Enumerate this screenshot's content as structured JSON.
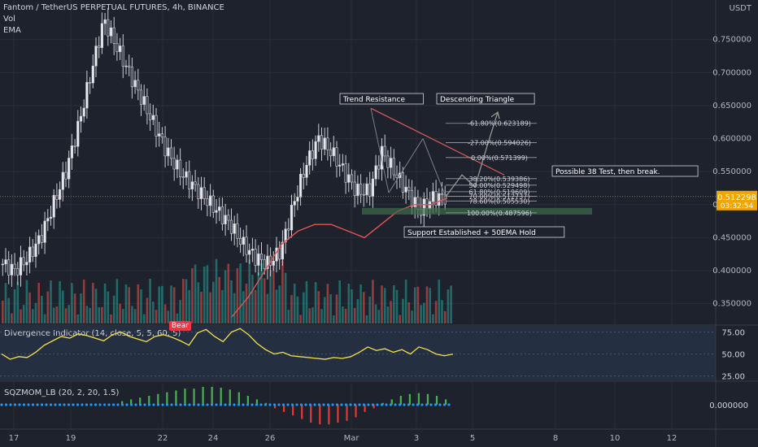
{
  "header": {
    "title": "Fantom / TetherUS PERPETUAL FUTURES, 4h, BINANCE",
    "vol_label": "Vol",
    "ema_label": "EMA"
  },
  "price_scale": {
    "currency": "USDT",
    "current_price": "0.512298",
    "countdown": "03:32:54"
  },
  "colors": {
    "background": "#1e222d",
    "up": "#26a69a",
    "down": "#ef5350",
    "ema": "#e05555",
    "divergence_line": "#f5e14b",
    "fib_line": "#9aa0a6",
    "resistance": "#e05a5a",
    "support_zone": "#3d6b4a",
    "sqz_pos": "#4caf50",
    "sqz_neg": "#e53935",
    "sqz_dot": "#2196f3"
  },
  "annotations": {
    "trend_resistance": "Trend Resistance",
    "descending_triangle": "Descending Triangle",
    "possible_test": "Possible 38 Test, then break.",
    "support": "Support Established + 50EMA Hold"
  },
  "divergence_panel": {
    "label": "Divergence Indicator (14, close, 5, 5, 60, 5)",
    "bear_badge": "Bear"
  },
  "sqz_panel": {
    "label": "SQZMOM_LB (20, 2, 20, 1.5)",
    "zero_label": "0.000000"
  },
  "chart_data": [
    {
      "type": "candlestick",
      "title": "Fantom / TetherUS PERPETUAL FUTURES, 4h, BINANCE",
      "ylabel": "USDT",
      "ylim": [
        0.32,
        0.81
      ],
      "yticks": [
        0.35,
        0.4,
        0.45,
        0.5,
        0.55,
        0.6,
        0.65,
        0.7,
        0.75
      ],
      "ytick_labels": [
        "0.350000",
        "0.400000",
        "0.450000",
        "0.500000",
        "0.550000",
        "0.600000",
        "0.650000",
        "0.700000",
        "0.750000"
      ],
      "x_ticks": [
        "17",
        "19",
        "22",
        "24",
        "26",
        "Mar",
        "3",
        "5",
        "8",
        "10",
        "12"
      ],
      "close_path": [
        0.41,
        0.4,
        0.42,
        0.45,
        0.5,
        0.55,
        0.62,
        0.7,
        0.78,
        0.74,
        0.7,
        0.66,
        0.62,
        0.58,
        0.55,
        0.53,
        0.51,
        0.49,
        0.47,
        0.44,
        0.42,
        0.41,
        0.43,
        0.5,
        0.56,
        0.6,
        0.58,
        0.55,
        0.52,
        0.52,
        0.58,
        0.55,
        0.52,
        0.49,
        0.51,
        0.512
      ],
      "ema_path": [
        0.33,
        0.36,
        0.4,
        0.44,
        0.46,
        0.47,
        0.47,
        0.46,
        0.45,
        0.47,
        0.49,
        0.5,
        0.5,
        0.51
      ],
      "fib_levels": [
        {
          "label": "-61.80%(0.623189)",
          "value": 0.623189
        },
        {
          "label": "-27.00%(0.594026)",
          "value": 0.594026
        },
        {
          "label": "0.00%(0.571399)",
          "value": 0.571399
        },
        {
          "label": "38.20%(0.539386)",
          "value": 0.539386
        },
        {
          "label": "50.00%(0.529498)",
          "value": 0.529498
        },
        {
          "label": "61.80%(0.519609)",
          "value": 0.519609
        },
        {
          "label": "70.00%(0.512737)",
          "value": 0.512737
        },
        {
          "label": "78.60%(0.505530)",
          "value": 0.50553
        },
        {
          "label": "100.00%(0.487596)",
          "value": 0.487596
        }
      ]
    },
    {
      "type": "line",
      "title": "Divergence Indicator (14, close, 5, 5, 60, 5)",
      "ylim": [
        20,
        82
      ],
      "yticks": [
        25,
        50,
        75
      ],
      "ytick_labels": [
        "25.00",
        "50.00",
        "75.00"
      ],
      "values": [
        50,
        44,
        47,
        46,
        52,
        60,
        65,
        70,
        68,
        73,
        71,
        68,
        65,
        72,
        75,
        70,
        67,
        64,
        70,
        72,
        69,
        65,
        60,
        74,
        78,
        70,
        64,
        75,
        79,
        72,
        62,
        55,
        50,
        52,
        48,
        47,
        46,
        45,
        44,
        46,
        45,
        47,
        52,
        58,
        54,
        56,
        52,
        55,
        50,
        58,
        55,
        50,
        48,
        50
      ]
    },
    {
      "type": "bar",
      "title": "SQZMOM_LB (20, 2, 20, 1.5)",
      "yticks": [
        0
      ],
      "ytick_labels": [
        "0.000000"
      ],
      "values": [
        0.2,
        0.3,
        0.4,
        0.5,
        0.6,
        0.7,
        0.8,
        0.9,
        0.9,
        1.0,
        1.0,
        0.95,
        0.85,
        0.7,
        0.5,
        0.3,
        0.1,
        -0.2,
        -0.4,
        -0.6,
        -0.8,
        -1.0,
        -1.1,
        -1.1,
        -1.0,
        -0.9,
        -0.7,
        -0.4,
        -0.2,
        0.1,
        0.3,
        0.5,
        0.6,
        0.65,
        0.6,
        0.5,
        0.3
      ]
    }
  ]
}
